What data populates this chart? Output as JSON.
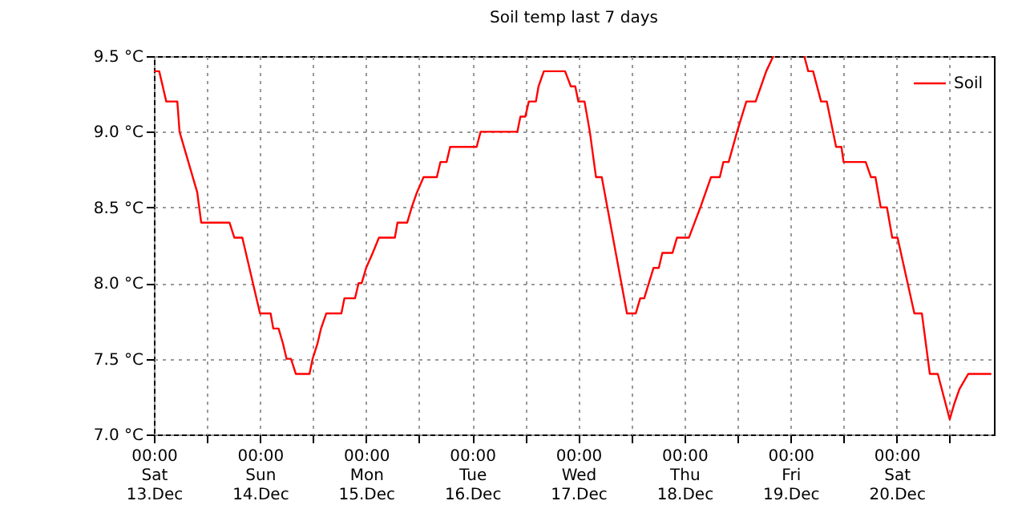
{
  "chart_data": {
    "type": "line",
    "title": "Soil temp last 7 days",
    "x": [
      "--12-13T00:00",
      "--12-13T01:12",
      "--12-13T02:48",
      "--12-13T05:18",
      "--12-13T05:48",
      "--12-13T09:48",
      "--12-13T10:42",
      "--12-13T17:06",
      "--12-13T18:12",
      "--12-13T20:00",
      "--12-14T00:00",
      "--12-14T02:24",
      "--12-14T03:00",
      "--12-14T04:12",
      "--12-14T05:12",
      "--12-14T06:00",
      "--12-14T07:00",
      "--12-14T08:06",
      "--12-14T11:12",
      "--12-14T11:54",
      "--12-14T13:00",
      "--12-14T13:48",
      "--12-14T15:00",
      "--12-14T18:24",
      "--12-14T19:06",
      "--12-14T21:30",
      "--12-14T22:18",
      "--12-14T23:00",
      "--12-15T00:00",
      "--12-15T01:30",
      "--12-15T02:54",
      "--12-15T06:30",
      "--12-15T07:06",
      "--12-15T09:18",
      "--12-15T10:18",
      "--12-15T11:30",
      "--12-15T13:00",
      "--12-15T16:00",
      "--12-15T16:48",
      "--12-15T18:12",
      "--12-15T19:00",
      "--12-16T01:00",
      "--12-16T01:54",
      "--12-16T10:12",
      "--12-16T10:54",
      "--12-16T12:00",
      "--12-16T12:48",
      "--12-16T14:24",
      "--12-16T15:00",
      "--12-16T16:12",
      "--12-16T21:00",
      "--12-16T22:18",
      "--12-16T23:18",
      "--12-17T00:00",
      "--12-17T01:24",
      "--12-17T02:36",
      "--12-17T04:00",
      "--12-17T05:18",
      "--12-17T11:00",
      "--12-17T13:00",
      "--12-17T14:00",
      "--12-17T14:54",
      "--12-17T17:00",
      "--12-17T18:12",
      "--12-17T19:00",
      "--12-17T21:18",
      "--12-17T22:18",
      "--12-18T01:00",
      "--12-18T02:18",
      "--12-18T03:36",
      "--12-18T06:00",
      "--12-18T08:00",
      "--12-18T08:48",
      "--12-18T10:00",
      "--12-18T11:54",
      "--12-18T14:00",
      "--12-18T16:06",
      "--12-18T17:18",
      "--12-18T18:30",
      "--12-18T20:06",
      "--12-18T23:30",
      "--12-19T03:06",
      "--12-19T04:00",
      "--12-19T05:06",
      "--12-19T06:54",
      "--12-19T08:12",
      "--12-19T10:18",
      "--12-19T11:30",
      "--12-19T12:00",
      "--12-19T17:00",
      "--12-19T18:12",
      "--12-19T19:12",
      "--12-19T20:24",
      "--12-19T21:48",
      "--12-19T23:00",
      "--12-20T00:12",
      "--12-20T04:00",
      "--12-20T05:42",
      "--12-20T07:30",
      "--12-20T09:18",
      "--12-20T12:00",
      "--12-20T13:00",
      "--12-20T14:12",
      "--12-20T16:12",
      "--12-20T21:24"
    ],
    "series": [
      {
        "name": "Soil",
        "color": "#ff0000",
        "values": [
          9.4,
          9.4,
          9.2,
          9.2,
          9.0,
          8.6,
          8.4,
          8.4,
          8.3,
          8.3,
          7.8,
          7.8,
          7.7,
          7.7,
          7.6,
          7.5,
          7.5,
          7.4,
          7.4,
          7.5,
          7.6,
          7.7,
          7.8,
          7.8,
          7.9,
          7.9,
          8.0,
          8.0,
          8.1,
          8.2,
          8.3,
          8.3,
          8.4,
          8.4,
          8.5,
          8.6,
          8.7,
          8.7,
          8.8,
          8.8,
          8.9,
          8.9,
          9.0,
          9.0,
          9.1,
          9.1,
          9.2,
          9.2,
          9.3,
          9.4,
          9.4,
          9.3,
          9.3,
          9.2,
          9.2,
          9.0,
          8.7,
          8.7,
          7.8,
          7.8,
          7.9,
          7.9,
          8.1,
          8.1,
          8.2,
          8.2,
          8.3,
          8.3,
          8.4,
          8.5,
          8.7,
          8.7,
          8.8,
          8.8,
          9.0,
          9.2,
          9.2,
          9.3,
          9.4,
          9.5,
          null,
          9.5,
          9.4,
          9.4,
          9.2,
          9.2,
          8.9,
          8.9,
          8.8,
          8.8,
          8.7,
          8.7,
          8.5,
          8.5,
          8.3,
          8.3,
          7.8,
          7.8,
          7.4,
          7.4,
          7.1,
          7.2,
          7.3,
          7.4,
          7.4
        ]
      }
    ],
    "xlim": [
      "--12-13T00:00",
      "--12-20T22:00"
    ],
    "xticks": [
      {
        "value": "--12-13T00:00",
        "label": "00:00\nSat\n13.Dec"
      },
      {
        "value": "--12-13T12:00",
        "label": null
      },
      {
        "value": "--12-14T00:00",
        "label": "00:00\nSun\n14.Dec"
      },
      {
        "value": "--12-14T12:00",
        "label": null
      },
      {
        "value": "--12-15T00:00",
        "label": "00:00\nMon\n15.Dec"
      },
      {
        "value": "--12-15T12:00",
        "label": null
      },
      {
        "value": "--12-16T00:00",
        "label": "00:00\nTue\n16.Dec"
      },
      {
        "value": "--12-16T12:00",
        "label": null
      },
      {
        "value": "--12-17T00:00",
        "label": "00:00\nWed\n17.Dec"
      },
      {
        "value": "--12-17T12:00",
        "label": null
      },
      {
        "value": "--12-18T00:00",
        "label": "00:00\nThu\n18.Dec"
      },
      {
        "value": "--12-18T12:00",
        "label": null
      },
      {
        "value": "--12-19T00:00",
        "label": "00:00\nFri\n19.Dec"
      },
      {
        "value": "--12-19T12:00",
        "label": null
      },
      {
        "value": "--12-20T00:00",
        "label": "00:00\nSat\n20.Dec"
      },
      {
        "value": "--12-20T12:00",
        "label": null
      }
    ],
    "ylim": [
      7.0,
      9.5
    ],
    "yticks": [
      {
        "value": 7.0,
        "label": "7.0 °C"
      },
      {
        "value": 7.5,
        "label": "7.5 °C"
      },
      {
        "value": 8.0,
        "label": "8.0 °C"
      },
      {
        "value": 8.5,
        "label": "8.5 °C"
      },
      {
        "value": 9.0,
        "label": "9.0 °C"
      },
      {
        "value": 9.5,
        "label": "9.5 °C"
      }
    ],
    "grid": true,
    "legend": "top right"
  }
}
